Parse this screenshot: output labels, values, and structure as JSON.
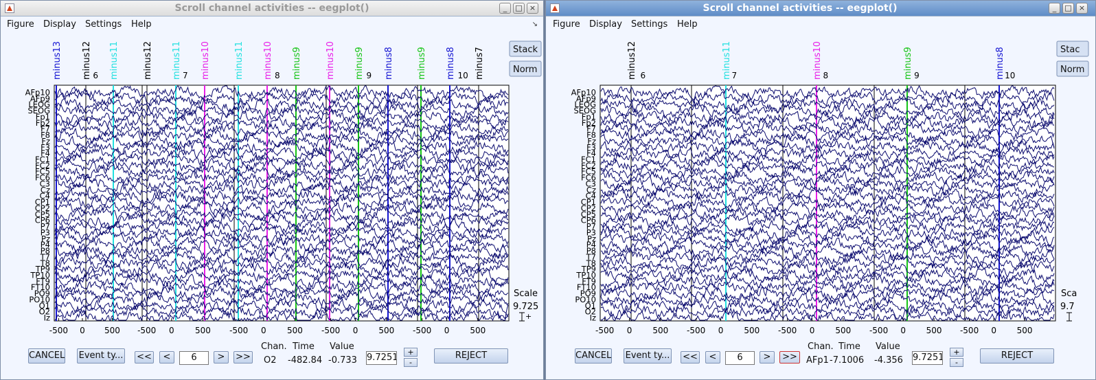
{
  "windows": [
    {
      "title": "Scroll channel activities -- eegplot()",
      "menus": [
        "Figure",
        "Display",
        "Settings",
        "Help"
      ],
      "window_buttons": [
        "_",
        "□",
        "×"
      ],
      "stack_label": "Stack",
      "norm_label": "Norm",
      "scale_label": "Scale",
      "scale_value": "9.725",
      "scale_marker": "+",
      "channels": [
        "AFp10",
        "AFp9",
        "LEOG",
        "SEOG",
        "Fp1",
        "Fp2",
        "F7",
        "F8",
        "Fz",
        "F3",
        "F4",
        "FC1",
        "FC2",
        "FC5",
        "FC6",
        "C3",
        "Cz",
        "C4",
        "CP1",
        "CP2",
        "CP5",
        "CP6",
        "P7",
        "P3",
        "Pz",
        "P4",
        "P8",
        "T7",
        "T8",
        "TP9",
        "TP10",
        "FT9",
        "FT10",
        "PO9",
        "PO10",
        "O1",
        "O2",
        "Iz"
      ],
      "x_ticks": [
        "-500",
        "0",
        "500",
        "-500",
        "0",
        "500",
        "-500",
        "0",
        "500",
        "-500",
        "0",
        "500",
        "-500",
        "0",
        "500"
      ],
      "epoch_numbers": [
        "6",
        "7",
        "8",
        "9",
        "10"
      ],
      "events": [
        {
          "label": "minus13",
          "color": "#1414d2"
        },
        {
          "label": "minus12",
          "color": "#000000"
        },
        {
          "label": "minus11",
          "color": "#22e0e0"
        },
        {
          "label": "minus12",
          "color": "#000000"
        },
        {
          "label": "minus11",
          "color": "#22e0e0"
        },
        {
          "label": "minus10",
          "color": "#e81ee8"
        },
        {
          "label": "minus11",
          "color": "#22e0e0"
        },
        {
          "label": "minus10",
          "color": "#e81ee8"
        },
        {
          "label": "minus9",
          "color": "#16c416"
        },
        {
          "label": "minus10",
          "color": "#e81ee8"
        },
        {
          "label": "minus9",
          "color": "#16c416"
        },
        {
          "label": "minus8",
          "color": "#1414d2"
        },
        {
          "label": "minus9",
          "color": "#16c416"
        },
        {
          "label": "minus8",
          "color": "#1414d2"
        },
        {
          "label": "minus7",
          "color": "#000000"
        }
      ],
      "controls": {
        "cancel": "CANCEL",
        "event_type": "Event ty...",
        "prev_fast": "<<",
        "prev": "<",
        "epoch_value": "6",
        "next": ">",
        "next_fast": ">>",
        "chan_header": "Chan.",
        "time_header": "Time",
        "value_header": "Value",
        "chan_value": "O2",
        "time_value": "-482.84",
        "value_value": "-0.733",
        "scale_edit": "9.7251",
        "plus": "+",
        "minus": "-",
        "reject": "REJECT"
      }
    },
    {
      "title": "Scroll channel activities -- eegplot()",
      "menus": [
        "Figure",
        "Display",
        "Settings",
        "Help"
      ],
      "window_buttons": [
        "_",
        "□",
        "×"
      ],
      "stack_label": "Stac",
      "norm_label": "Norm",
      "scale_label": "Sca",
      "scale_value": "9.7",
      "scale_marker": "",
      "channels": [
        "AFp10",
        "AFp9",
        "LEOG",
        "SEOG",
        "Fp1",
        "Fp2",
        "F7",
        "F8",
        "Fz",
        "F3",
        "F4",
        "FC1",
        "FC2",
        "FC5",
        "FC6",
        "C3",
        "Cz",
        "C4",
        "CP1",
        "CP2",
        "CP5",
        "CP6",
        "P7",
        "P3",
        "Pz",
        "P4",
        "P8",
        "T7",
        "T8",
        "TP9",
        "TP10",
        "FT9",
        "FT10",
        "PO9",
        "PO10",
        "O1",
        "O2",
        "Iz"
      ],
      "x_ticks": [
        "-500",
        "0",
        "500",
        "-500",
        "0",
        "500",
        "-500",
        "0",
        "500",
        "-500",
        "0",
        "500",
        "-500",
        "0",
        "500"
      ],
      "epoch_numbers": [
        "6",
        "7",
        "8",
        "9",
        "10"
      ],
      "events": [
        {
          "label": "minus12",
          "color": "#000000"
        },
        {
          "label": "minus11",
          "color": "#22e0e0"
        },
        {
          "label": "minus10",
          "color": "#e81ee8"
        },
        {
          "label": "minus9",
          "color": "#16c416"
        },
        {
          "label": "minus8",
          "color": "#1414d2"
        }
      ],
      "controls": {
        "cancel": "CANCEL",
        "event_type": "Event ty...",
        "prev_fast": "<<",
        "prev": "<",
        "epoch_value": "6",
        "next": ">",
        "next_fast": ">>",
        "chan_header": "Chan.",
        "time_header": "Time",
        "value_header": "Value",
        "chan_value": "AFp1(",
        "time_value": "-7.1006",
        "value_value": "-4.356",
        "scale_edit": "9.7251",
        "plus": "+",
        "minus": "-",
        "reject": "REJECT"
      }
    }
  ],
  "trace_color": "#0a0a6e",
  "background_color": "#f2f6ff"
}
